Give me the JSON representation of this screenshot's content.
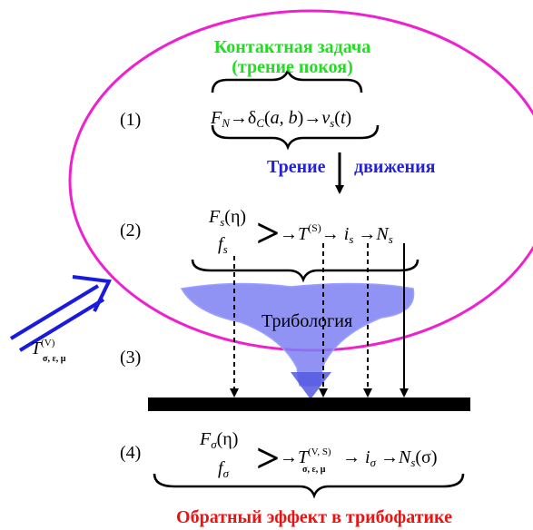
{
  "title_contact": {
    "line1": "Контактная задача",
    "line2": "(трение покоя)",
    "color": "#22dd22"
  },
  "friction_motion": {
    "word1": "Трение",
    "word2": "движения",
    "color": "#2222dd"
  },
  "tribology": {
    "label": "Трибология",
    "color": "#6f74f0"
  },
  "bottom_title": {
    "text": "Обратный эффект в трибофатике",
    "color": "#ee1111"
  },
  "ellipse_color": "#ee22cc",
  "steps": {
    "s1": "(1)",
    "s2": "(2)",
    "s3": "(3)",
    "s4": "(4)"
  },
  "formula1": {
    "F": "F",
    "F_sub": "N",
    "arrow1": "→",
    "delta": "δ",
    "delta_sub": "C",
    "args_open": "(",
    "a": "a",
    "comma": ",",
    "b": "b",
    "args_close": ")",
    "arrow2": "→",
    "v": "v",
    "v_sub": "s",
    "t_open": "(",
    "t": "t",
    "t_close": ")"
  },
  "formula2": {
    "F": "F",
    "F_sub": "s",
    "eta": "(η)",
    "f": "f",
    "f_sub": "s",
    "gt": ">",
    "arrow": "→",
    "T": "T",
    "T_sup": "(S)",
    "arrow2": "→",
    "i": "i",
    "i_sub": "s",
    "arrow3": "→",
    "N": "N",
    "N_sub": "s"
  },
  "formula4": {
    "F": "F",
    "F_sub": "σ",
    "eta": "(η)",
    "f": "f",
    "f_sub": "σ",
    "gt": ">",
    "arrow": "→",
    "T": "T",
    "T_sup": "(V, S)",
    "T_sub": "σ, ε, μ",
    "arrow2": "→",
    "i": "i",
    "i_sub": "σ",
    "arrow3": "→",
    "N": "N",
    "N_sub": "s",
    "sigma": "(σ)"
  },
  "left_input": {
    "T": "T",
    "T_sup": "(V)",
    "T_sub": "σ, ε, μ",
    "arrow_color": "#1a1add"
  }
}
